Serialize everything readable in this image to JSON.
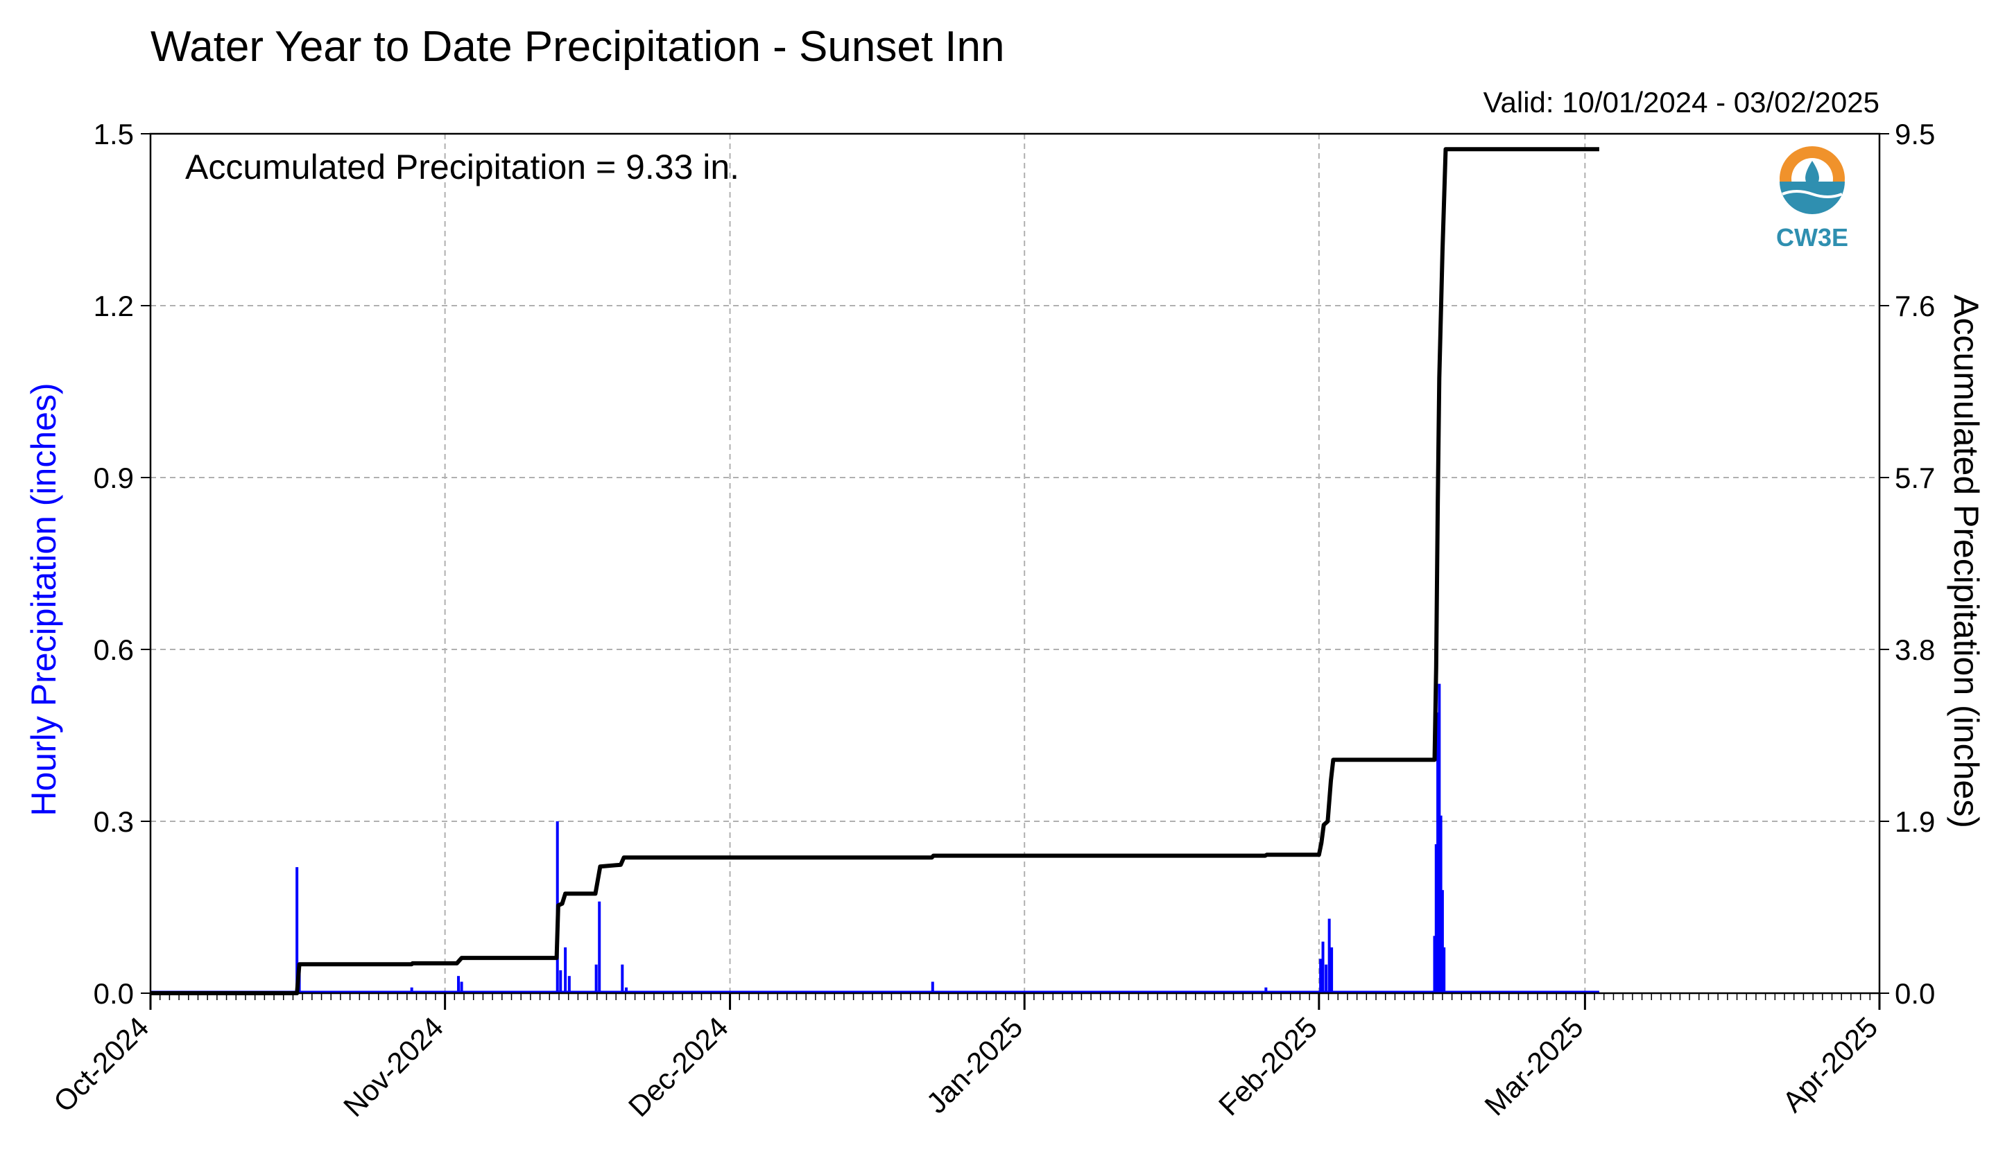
{
  "chart_data": {
    "type": "bar",
    "title": "Water Year to Date Precipitation - Sunset Inn",
    "valid_range": "Valid: 10/01/2024 - 03/02/2025",
    "annotation": "Accumulated Precipitation = 9.33 in.",
    "logo_text": "CW3E",
    "ylabel_left": "Hourly Precipitation (inches)",
    "ylabel_right": "Accumulated Precipitation (inches)",
    "xlim": [
      "2024-10-01",
      "2025-04-01"
    ],
    "x_ticks": [
      {
        "date": "2024-10-01",
        "label": "Oct-2024"
      },
      {
        "date": "2024-11-01",
        "label": "Nov-2024"
      },
      {
        "date": "2024-12-01",
        "label": "Dec-2024"
      },
      {
        "date": "2025-01-01",
        "label": "Jan-2025"
      },
      {
        "date": "2025-02-01",
        "label": "Feb-2025"
      },
      {
        "date": "2025-03-01",
        "label": "Mar-2025"
      },
      {
        "date": "2025-04-01",
        "label": "Apr-2025"
      }
    ],
    "ylim_left": [
      0,
      1.5
    ],
    "y_ticks_left": [
      "0.0",
      "0.3",
      "0.6",
      "0.9",
      "1.2",
      "1.5"
    ],
    "ylim_right": [
      0,
      9.5
    ],
    "y_ticks_right": [
      "0.0",
      "1.9",
      "3.8",
      "5.7",
      "7.6",
      "9.5"
    ],
    "grid": true,
    "colors": {
      "hourly": "#0000ff",
      "accumulated": "#000000",
      "grid": "#b0b0b0",
      "logo_orange": "#f0922b",
      "logo_blue": "#2f8fb0"
    },
    "series": [
      {
        "name": "Hourly Precipitation (inches)",
        "axis": "left",
        "points": [
          {
            "x": "2024-10-16 10:00",
            "y": 0.22
          },
          {
            "x": "2024-10-16 16:00",
            "y": 0.05
          },
          {
            "x": "2024-10-28 12:00",
            "y": 0.01
          },
          {
            "x": "2024-11-02 10:00",
            "y": 0.03
          },
          {
            "x": "2024-11-02 18:00",
            "y": 0.02
          },
          {
            "x": "2024-11-12 20:00",
            "y": 0.3
          },
          {
            "x": "2024-11-13 04:00",
            "y": 0.04
          },
          {
            "x": "2024-11-13 16:00",
            "y": 0.08
          },
          {
            "x": "2024-11-14 02:00",
            "y": 0.03
          },
          {
            "x": "2024-11-16 22:00",
            "y": 0.05
          },
          {
            "x": "2024-11-17 06:00",
            "y": 0.16
          },
          {
            "x": "2024-11-19 16:00",
            "y": 0.05
          },
          {
            "x": "2024-11-20 02:00",
            "y": 0.01
          },
          {
            "x": "2024-12-22 08:00",
            "y": 0.02
          },
          {
            "x": "2025-01-26 10:00",
            "y": 0.01
          },
          {
            "x": "2025-02-01 04:00",
            "y": 0.06
          },
          {
            "x": "2025-02-01 10:00",
            "y": 0.09
          },
          {
            "x": "2025-02-01 18:00",
            "y": 0.05
          },
          {
            "x": "2025-02-02 02:00",
            "y": 0.13
          },
          {
            "x": "2025-02-02 08:00",
            "y": 0.08
          },
          {
            "x": "2025-02-13 04:00",
            "y": 0.1
          },
          {
            "x": "2025-02-13 08:00",
            "y": 0.26
          },
          {
            "x": "2025-02-13 12:00",
            "y": 0.49
          },
          {
            "x": "2025-02-13 16:00",
            "y": 0.54
          },
          {
            "x": "2025-02-13 20:00",
            "y": 0.31
          },
          {
            "x": "2025-02-14 00:00",
            "y": 0.18
          },
          {
            "x": "2025-02-14 04:00",
            "y": 0.08
          }
        ]
      },
      {
        "name": "Accumulated Precipitation (inches)",
        "axis": "right",
        "points": [
          {
            "x": "2024-10-01 00:00",
            "y": 0.0
          },
          {
            "x": "2024-10-16 10:00",
            "y": 0.0
          },
          {
            "x": "2024-10-16 16:00",
            "y": 0.32
          },
          {
            "x": "2024-10-28 12:00",
            "y": 0.32
          },
          {
            "x": "2024-10-28 14:00",
            "y": 0.33
          },
          {
            "x": "2024-11-02 06:00",
            "y": 0.33
          },
          {
            "x": "2024-11-02 18:00",
            "y": 0.39
          },
          {
            "x": "2024-11-12 18:00",
            "y": 0.39
          },
          {
            "x": "2024-11-12 22:00",
            "y": 0.97
          },
          {
            "x": "2024-11-13 08:00",
            "y": 0.99
          },
          {
            "x": "2024-11-13 16:00",
            "y": 1.1
          },
          {
            "x": "2024-11-16 20:00",
            "y": 1.1
          },
          {
            "x": "2024-11-17 08:00",
            "y": 1.4
          },
          {
            "x": "2024-11-19 12:00",
            "y": 1.42
          },
          {
            "x": "2024-11-19 20:00",
            "y": 1.5
          },
          {
            "x": "2024-12-22 06:00",
            "y": 1.5
          },
          {
            "x": "2024-12-22 10:00",
            "y": 1.52
          },
          {
            "x": "2025-01-26 08:00",
            "y": 1.52
          },
          {
            "x": "2025-01-26 12:00",
            "y": 1.53
          },
          {
            "x": "2025-02-01 00:00",
            "y": 1.53
          },
          {
            "x": "2025-02-01 06:00",
            "y": 1.66
          },
          {
            "x": "2025-02-01 12:00",
            "y": 1.86
          },
          {
            "x": "2025-02-01 22:00",
            "y": 1.9
          },
          {
            "x": "2025-02-02 06:00",
            "y": 2.35
          },
          {
            "x": "2025-02-02 12:00",
            "y": 2.58
          },
          {
            "x": "2025-02-13 04:00",
            "y": 2.58
          },
          {
            "x": "2025-02-13 08:00",
            "y": 3.6
          },
          {
            "x": "2025-02-13 12:00",
            "y": 5.4
          },
          {
            "x": "2025-02-13 16:00",
            "y": 6.8
          },
          {
            "x": "2025-02-14 00:00",
            "y": 8.2
          },
          {
            "x": "2025-02-14 08:00",
            "y": 9.33
          },
          {
            "x": "2025-03-02 12:00",
            "y": 9.33
          }
        ]
      }
    ]
  }
}
